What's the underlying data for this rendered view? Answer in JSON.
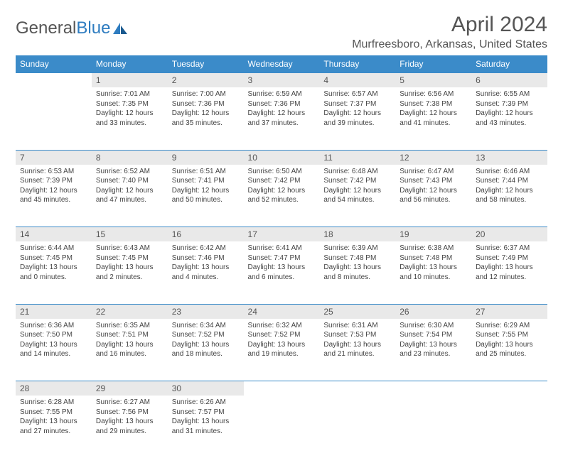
{
  "brand": {
    "part1": "General",
    "part2": "Blue"
  },
  "title": "April 2024",
  "location": "Murfreesboro, Arkansas, United States",
  "weekday_headers": [
    "Sunday",
    "Monday",
    "Tuesday",
    "Wednesday",
    "Thursday",
    "Friday",
    "Saturday"
  ],
  "header_bg": "#3b8bc9",
  "header_fg": "#ffffff",
  "daynum_bg": "#e9e9e9",
  "border_color": "#3b8bc9",
  "text_color": "#444444",
  "fontsize_header": 12,
  "fontsize_detail": 10,
  "weeks": [
    [
      null,
      {
        "n": "1",
        "sr": "7:01 AM",
        "ss": "7:35 PM",
        "dl": "12 hours and 33 minutes."
      },
      {
        "n": "2",
        "sr": "7:00 AM",
        "ss": "7:36 PM",
        "dl": "12 hours and 35 minutes."
      },
      {
        "n": "3",
        "sr": "6:59 AM",
        "ss": "7:36 PM",
        "dl": "12 hours and 37 minutes."
      },
      {
        "n": "4",
        "sr": "6:57 AM",
        "ss": "7:37 PM",
        "dl": "12 hours and 39 minutes."
      },
      {
        "n": "5",
        "sr": "6:56 AM",
        "ss": "7:38 PM",
        "dl": "12 hours and 41 minutes."
      },
      {
        "n": "6",
        "sr": "6:55 AM",
        "ss": "7:39 PM",
        "dl": "12 hours and 43 minutes."
      }
    ],
    [
      {
        "n": "7",
        "sr": "6:53 AM",
        "ss": "7:39 PM",
        "dl": "12 hours and 45 minutes."
      },
      {
        "n": "8",
        "sr": "6:52 AM",
        "ss": "7:40 PM",
        "dl": "12 hours and 47 minutes."
      },
      {
        "n": "9",
        "sr": "6:51 AM",
        "ss": "7:41 PM",
        "dl": "12 hours and 50 minutes."
      },
      {
        "n": "10",
        "sr": "6:50 AM",
        "ss": "7:42 PM",
        "dl": "12 hours and 52 minutes."
      },
      {
        "n": "11",
        "sr": "6:48 AM",
        "ss": "7:42 PM",
        "dl": "12 hours and 54 minutes."
      },
      {
        "n": "12",
        "sr": "6:47 AM",
        "ss": "7:43 PM",
        "dl": "12 hours and 56 minutes."
      },
      {
        "n": "13",
        "sr": "6:46 AM",
        "ss": "7:44 PM",
        "dl": "12 hours and 58 minutes."
      }
    ],
    [
      {
        "n": "14",
        "sr": "6:44 AM",
        "ss": "7:45 PM",
        "dl": "13 hours and 0 minutes."
      },
      {
        "n": "15",
        "sr": "6:43 AM",
        "ss": "7:45 PM",
        "dl": "13 hours and 2 minutes."
      },
      {
        "n": "16",
        "sr": "6:42 AM",
        "ss": "7:46 PM",
        "dl": "13 hours and 4 minutes."
      },
      {
        "n": "17",
        "sr": "6:41 AM",
        "ss": "7:47 PM",
        "dl": "13 hours and 6 minutes."
      },
      {
        "n": "18",
        "sr": "6:39 AM",
        "ss": "7:48 PM",
        "dl": "13 hours and 8 minutes."
      },
      {
        "n": "19",
        "sr": "6:38 AM",
        "ss": "7:48 PM",
        "dl": "13 hours and 10 minutes."
      },
      {
        "n": "20",
        "sr": "6:37 AM",
        "ss": "7:49 PM",
        "dl": "13 hours and 12 minutes."
      }
    ],
    [
      {
        "n": "21",
        "sr": "6:36 AM",
        "ss": "7:50 PM",
        "dl": "13 hours and 14 minutes."
      },
      {
        "n": "22",
        "sr": "6:35 AM",
        "ss": "7:51 PM",
        "dl": "13 hours and 16 minutes."
      },
      {
        "n": "23",
        "sr": "6:34 AM",
        "ss": "7:52 PM",
        "dl": "13 hours and 18 minutes."
      },
      {
        "n": "24",
        "sr": "6:32 AM",
        "ss": "7:52 PM",
        "dl": "13 hours and 19 minutes."
      },
      {
        "n": "25",
        "sr": "6:31 AM",
        "ss": "7:53 PM",
        "dl": "13 hours and 21 minutes."
      },
      {
        "n": "26",
        "sr": "6:30 AM",
        "ss": "7:54 PM",
        "dl": "13 hours and 23 minutes."
      },
      {
        "n": "27",
        "sr": "6:29 AM",
        "ss": "7:55 PM",
        "dl": "13 hours and 25 minutes."
      }
    ],
    [
      {
        "n": "28",
        "sr": "6:28 AM",
        "ss": "7:55 PM",
        "dl": "13 hours and 27 minutes."
      },
      {
        "n": "29",
        "sr": "6:27 AM",
        "ss": "7:56 PM",
        "dl": "13 hours and 29 minutes."
      },
      {
        "n": "30",
        "sr": "6:26 AM",
        "ss": "7:57 PM",
        "dl": "13 hours and 31 minutes."
      },
      null,
      null,
      null,
      null
    ]
  ],
  "labels": {
    "sunrise": "Sunrise:",
    "sunset": "Sunset:",
    "daylight": "Daylight:"
  }
}
